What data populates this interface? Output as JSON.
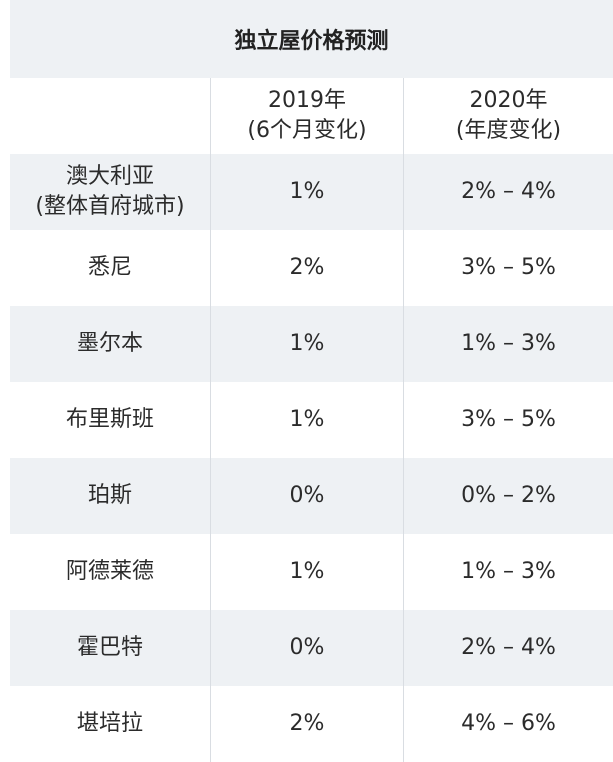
{
  "title": "独立屋价格预测",
  "headers": {
    "col1": "",
    "col2_line1": "2019年",
    "col2_line2": "(6个月变化)",
    "col3_line1": "2020年",
    "col3_line2": "(年度变化)"
  },
  "rows": [
    {
      "city_line1": "澳大利亚",
      "city_line2": "(整体首府城市)",
      "y2019": "1%",
      "y2020": "2% – 4%"
    },
    {
      "city_line1": "悉尼",
      "city_line2": "",
      "y2019": "2%",
      "y2020": "3% – 5%"
    },
    {
      "city_line1": "墨尔本",
      "city_line2": "",
      "y2019": "1%",
      "y2020": "1% – 3%"
    },
    {
      "city_line1": "布里斯班",
      "city_line2": "",
      "y2019": "1%",
      "y2020": "3% – 5%"
    },
    {
      "city_line1": "珀斯",
      "city_line2": "",
      "y2019": "0%",
      "y2020": "0% – 2%"
    },
    {
      "city_line1": "阿德莱德",
      "city_line2": "",
      "y2019": "1%",
      "y2020": "1% – 3%"
    },
    {
      "city_line1": "霍巴特",
      "city_line2": "",
      "y2019": "0%",
      "y2020": "2% – 4%"
    },
    {
      "city_line1": "堪培拉",
      "city_line2": "",
      "y2019": "2%",
      "y2020": "4% – 6%"
    }
  ]
}
